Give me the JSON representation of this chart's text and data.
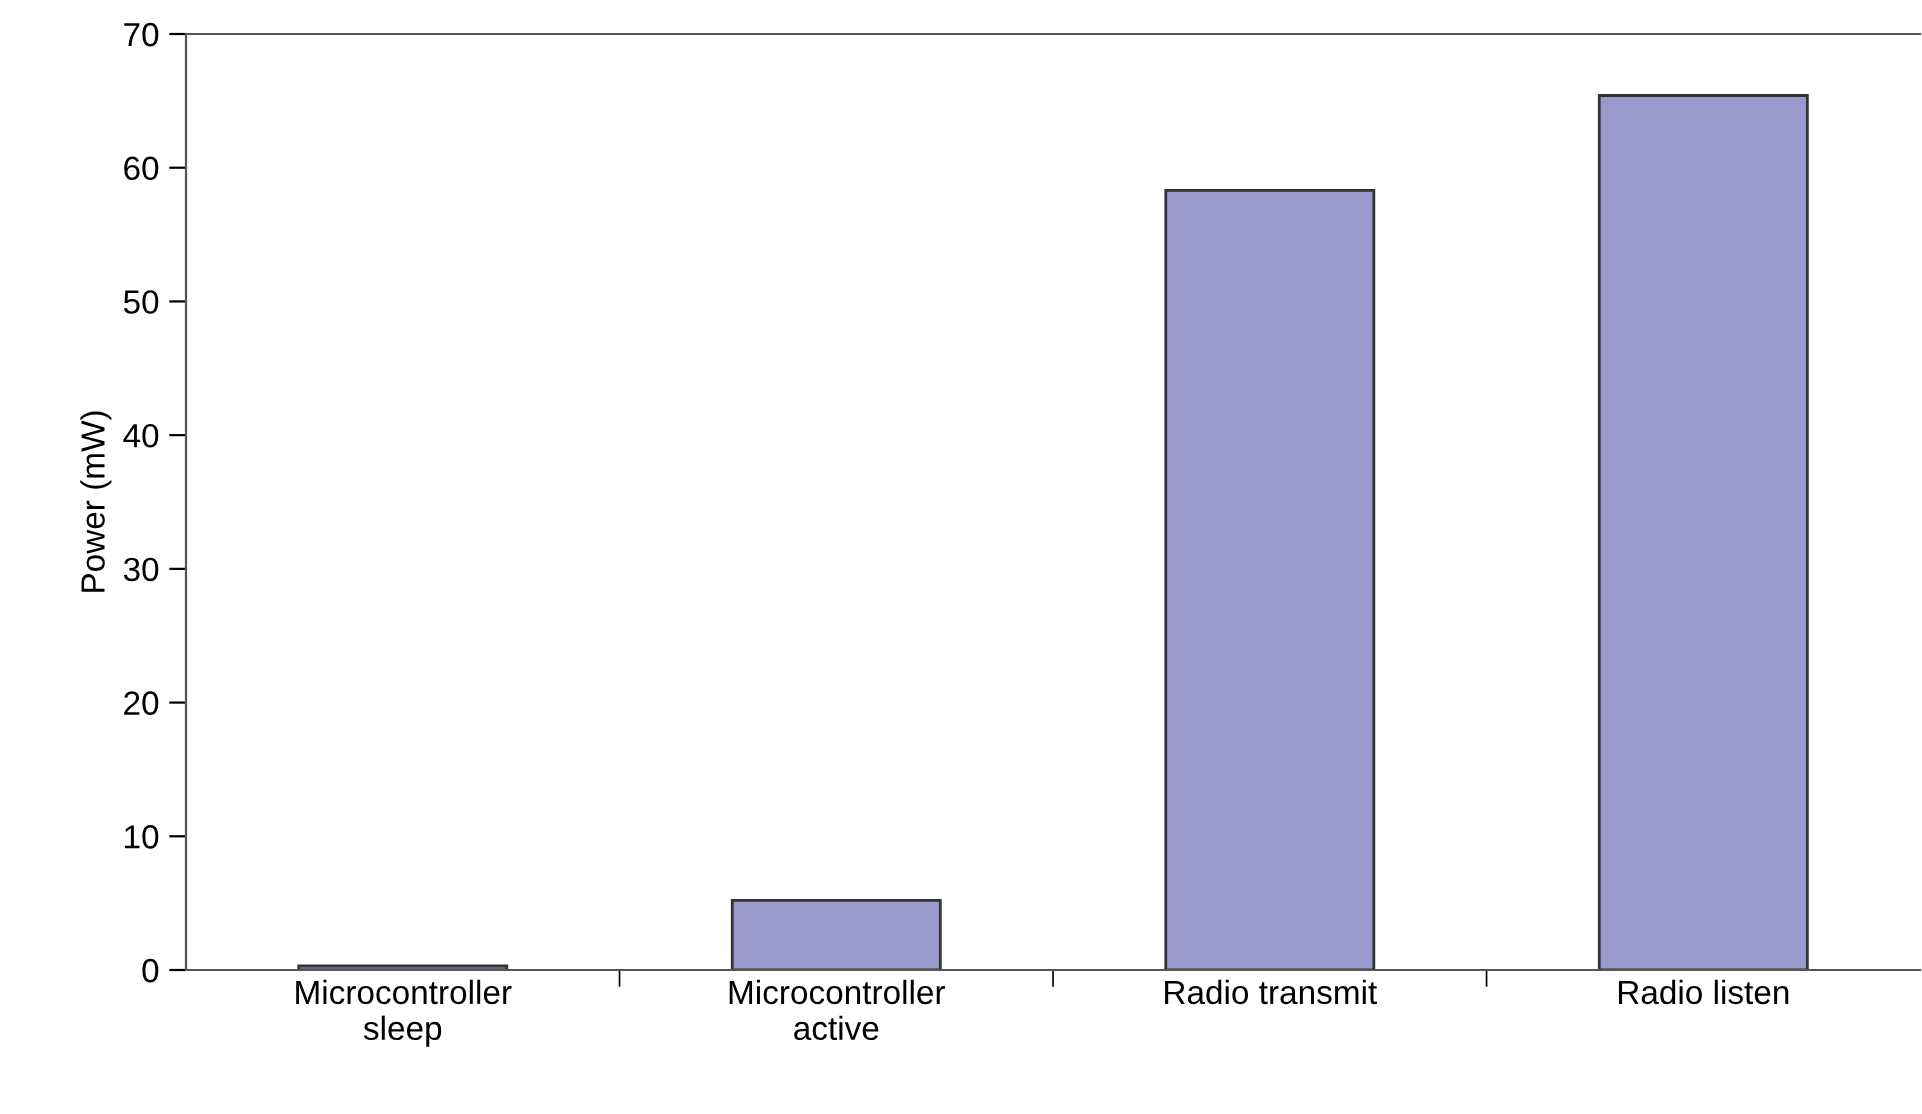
{
  "chart_data": {
    "type": "bar",
    "ylabel": "Power (mW)",
    "categories": [
      "Microcontroller\nsleep",
      "Microcontroller\nactive",
      "Radio transmit",
      "Radio listen"
    ],
    "values": [
      0.3,
      5.2,
      58.3,
      65.4
    ],
    "color": "#9999cc",
    "ylim": [
      0,
      70
    ],
    "yticks": [
      0,
      10,
      20,
      30,
      40,
      50,
      60,
      70
    ],
    "grid": false,
    "legend": false
  }
}
